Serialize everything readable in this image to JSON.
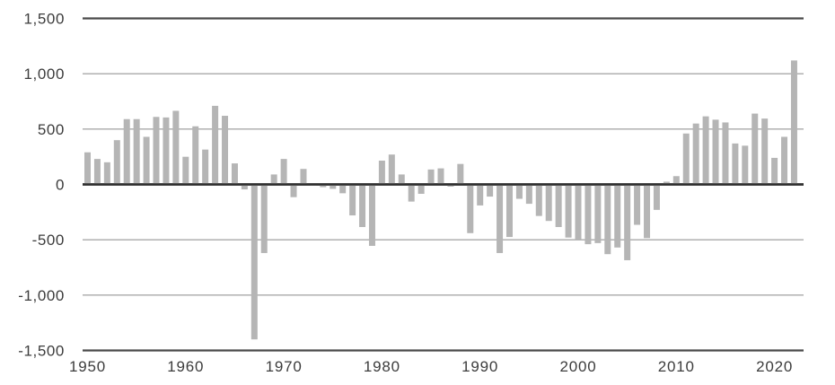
{
  "chart_data": {
    "type": "bar",
    "title": "",
    "xlabel": "",
    "ylabel": "",
    "legend": "none",
    "grid": "horizontal",
    "ylim": [
      -1500,
      1500
    ],
    "ytick_values": [
      1500,
      1000,
      500,
      0,
      -500,
      -1000,
      -1500
    ],
    "ytick_labels": [
      "1,500",
      "1,000",
      "500",
      "0",
      "-500",
      "-1,000",
      "-1,500"
    ],
    "xtick_values": [
      1950,
      1960,
      1970,
      1980,
      1990,
      2000,
      2010,
      2020
    ],
    "xtick_labels": [
      "1950",
      "1960",
      "1970",
      "1980",
      "1990",
      "2000",
      "2010",
      "2020"
    ],
    "x": [
      1950,
      1951,
      1952,
      1953,
      1954,
      1955,
      1956,
      1957,
      1958,
      1959,
      1960,
      1961,
      1962,
      1963,
      1964,
      1965,
      1966,
      1967,
      1968,
      1969,
      1970,
      1971,
      1972,
      1973,
      1974,
      1975,
      1976,
      1977,
      1978,
      1979,
      1980,
      1981,
      1982,
      1983,
      1984,
      1985,
      1986,
      1987,
      1988,
      1989,
      1990,
      1991,
      1992,
      1993,
      1994,
      1995,
      1996,
      1997,
      1998,
      1999,
      2000,
      2001,
      2002,
      2003,
      2004,
      2005,
      2006,
      2007,
      2008,
      2009,
      2010,
      2011,
      2012,
      2013,
      2014,
      2015,
      2016,
      2017,
      2018,
      2019,
      2020,
      2021,
      2022
    ],
    "values": [
      290,
      230,
      200,
      400,
      590,
      590,
      430,
      610,
      605,
      665,
      250,
      525,
      315,
      710,
      620,
      190,
      -45,
      -1400,
      -620,
      90,
      230,
      -115,
      140,
      -10,
      -25,
      -40,
      -80,
      -280,
      -385,
      -555,
      215,
      270,
      90,
      -155,
      -85,
      135,
      145,
      -20,
      185,
      -440,
      -190,
      -110,
      -620,
      -475,
      -130,
      -175,
      -285,
      -330,
      -385,
      -480,
      -500,
      -540,
      -530,
      -630,
      -570,
      -685,
      -365,
      -485,
      -230,
      25,
      75,
      460,
      550,
      615,
      585,
      560,
      370,
      350,
      640,
      595,
      240,
      430,
      1120
    ],
    "colors": {
      "bar": "#b5b5b5",
      "zero_axis": "#2e2e2e",
      "frame_line": "#4a4a4a",
      "gridline": "#a8a8a8",
      "label": "#3c3c3c",
      "background": "#ffffff"
    }
  }
}
